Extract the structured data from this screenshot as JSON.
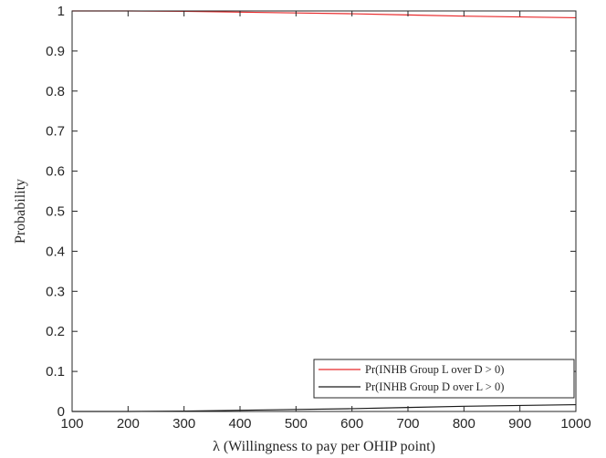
{
  "chart_data": {
    "type": "line",
    "title": "",
    "xlabel": "λ (Willingness to pay per OHIP point)",
    "ylabel": "Probability",
    "xlim": [
      100,
      1000
    ],
    "ylim": [
      0,
      1
    ],
    "xticks": [
      100,
      200,
      300,
      400,
      500,
      600,
      700,
      800,
      900,
      1000
    ],
    "yticks": [
      0,
      0.1,
      0.2,
      0.3,
      0.4,
      0.5,
      0.6,
      0.7,
      0.8,
      0.9,
      1
    ],
    "grid": false,
    "legend_position": "bottom-right",
    "series": [
      {
        "name": "Pr(INHB Group L over D > 0)",
        "color": "#e8292b",
        "x": [
          100,
          200,
          300,
          400,
          500,
          600,
          700,
          800,
          900,
          1000
        ],
        "y": [
          1.0,
          1.0,
          0.999,
          0.997,
          0.995,
          0.993,
          0.99,
          0.987,
          0.985,
          0.983
        ]
      },
      {
        "name": "Pr(INHB Group D over L > 0)",
        "color": "#1a1a1a",
        "x": [
          100,
          200,
          300,
          400,
          500,
          600,
          700,
          800,
          900,
          1000
        ],
        "y": [
          0.0,
          0.0,
          0.001,
          0.003,
          0.005,
          0.007,
          0.01,
          0.013,
          0.015,
          0.017
        ]
      }
    ]
  }
}
